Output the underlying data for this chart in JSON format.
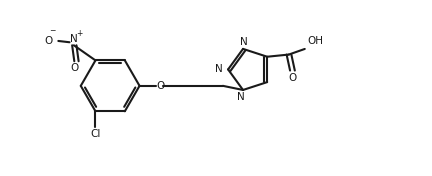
{
  "bg_color": "#ffffff",
  "line_color": "#1a1a1a",
  "bond_width": 1.5,
  "figsize": [
    4.32,
    1.76
  ],
  "dpi": 100,
  "xlim": [
    0,
    10
  ],
  "ylim": [
    0,
    4
  ]
}
